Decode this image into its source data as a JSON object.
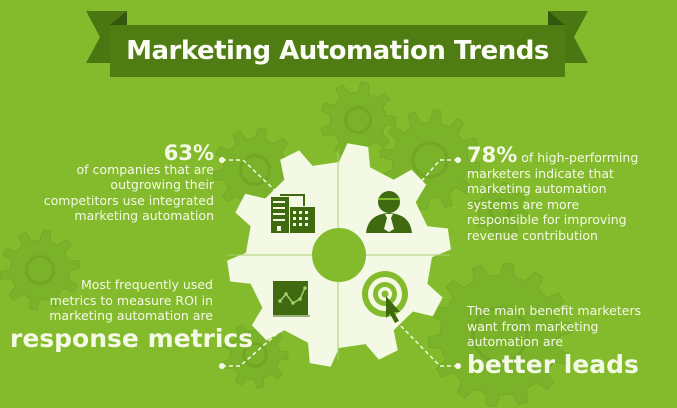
{
  "title": "Marketing Automation Trends",
  "colors": {
    "background": "#84bb2c",
    "banner": "#4f7d14",
    "banner_tail": "#3f6a10",
    "gear": "#f4f9e6",
    "icon": "#3f6a10",
    "text": "#f4f9e6"
  },
  "stats": {
    "top_left": {
      "highlight": "63%",
      "lines": [
        "of companies that are",
        "outgrowing their",
        "competitors use integrated",
        "marketing automation"
      ],
      "icon": "building-icon"
    },
    "top_right": {
      "highlight": "78%",
      "lead": " of high-performing",
      "lines": [
        "marketers indicate that",
        "marketing automation",
        "systems are more",
        "responsible for improving",
        "revenue contribution"
      ],
      "icon": "businessman-icon"
    },
    "bottom_left": {
      "lines": [
        "Most frequently used",
        "metrics to measure ROI in",
        "marketing automation are"
      ],
      "highlight": "response metrics",
      "icon": "line-chart-icon"
    },
    "bottom_right": {
      "lines": [
        "The main benefit marketers",
        "want from marketing",
        "automation are"
      ],
      "highlight": "better leads",
      "icon": "target-cursor-icon"
    }
  }
}
